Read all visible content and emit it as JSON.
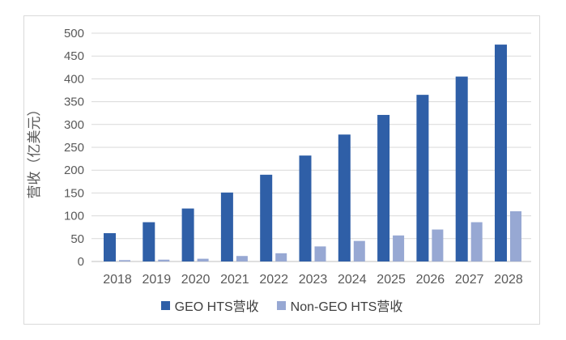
{
  "chart_data": {
    "type": "bar",
    "title": "",
    "xlabel": "",
    "ylabel": "营收（亿美元）",
    "categories": [
      "2018",
      "2019",
      "2020",
      "2021",
      "2022",
      "2023",
      "2024",
      "2025",
      "2026",
      "2027",
      "2028"
    ],
    "series": [
      {
        "name": "GEO HTS营收",
        "color": "#2f5fa7",
        "values": [
          62,
          86,
          116,
          151,
          190,
          232,
          278,
          321,
          365,
          405,
          475
        ]
      },
      {
        "name": "Non-GEO HTS营收",
        "color": "#97a8d3",
        "values": [
          3,
          4,
          6,
          12,
          18,
          33,
          45,
          57,
          70,
          86,
          110
        ]
      }
    ],
    "ylim": [
      0,
      500
    ],
    "ytick_step": 50,
    "ytick_labels": [
      "0",
      "50",
      "100",
      "150",
      "200",
      "250",
      "300",
      "350",
      "400",
      "450",
      "500"
    ],
    "grid": true,
    "legend_position": "bottom"
  },
  "styles": {
    "grid_color": "#d9d9d9",
    "axis_color": "#bfbfbf",
    "tick_text_color": "#595959",
    "legend_text_color": "#404040",
    "frame_border_color": "#d9d9d9",
    "background": "#ffffff"
  }
}
